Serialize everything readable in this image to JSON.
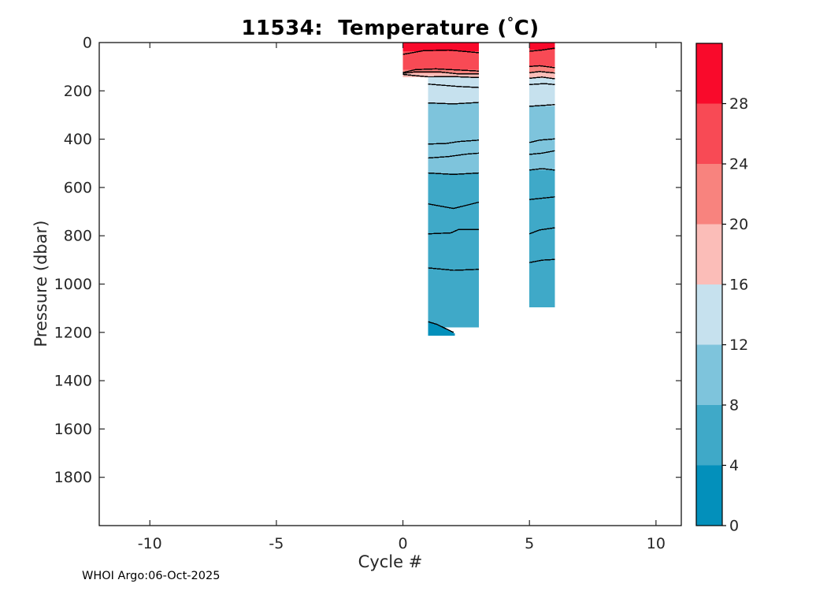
{
  "window": {
    "background": "#ffffff"
  },
  "footer": "WHOI Argo:06-Oct-2025",
  "chart_data": {
    "type": "filled-contour",
    "title": {
      "prefix": "11534:  Temperature (",
      "degree": "°",
      "suffix": "C)"
    },
    "xlabel": "Cycle #",
    "ylabel": "Pressure (dbar)",
    "units": {
      "x": "cycle number",
      "y": "dbar",
      "z": "degC"
    },
    "xlim": [
      -12,
      11
    ],
    "ylim": [
      0,
      2000
    ],
    "y_reversed": true,
    "xticks": [
      -10,
      -5,
      0,
      5,
      10
    ],
    "yticks": [
      0,
      200,
      400,
      600,
      800,
      1000,
      1200,
      1400,
      1600,
      1800
    ],
    "grid": false,
    "axis_color": "#262626",
    "frame_color": "#000000",
    "contour_line_color": "#000000",
    "colorbar": {
      "min": 0,
      "max": 32,
      "tick_values": [
        0,
        4,
        8,
        12,
        16,
        20,
        24,
        28
      ],
      "segments": [
        {
          "label": "0-4",
          "range": [
            0,
            4
          ],
          "color": "#0390BB"
        },
        {
          "label": "4-8",
          "range": [
            4,
            8
          ],
          "color": "#3FA9C8"
        },
        {
          "label": "8-12",
          "range": [
            8,
            12
          ],
          "color": "#7EC4DC"
        },
        {
          "label": "12-16",
          "range": [
            12,
            16
          ],
          "color": "#C6E1EE"
        },
        {
          "label": "16-20",
          "range": [
            16,
            20
          ],
          "color": "#FBBDB8"
        },
        {
          "label": "20-24",
          "range": [
            20,
            24
          ],
          "color": "#F8837E"
        },
        {
          "label": "24-28",
          "range": [
            24,
            28
          ],
          "color": "#F84A55"
        },
        {
          "label": "28+",
          "range": [
            28,
            32
          ],
          "color": "#F90A2B"
        }
      ]
    },
    "bands": [
      {
        "name": "cycles-0-3",
        "fills": [
          {
            "x": [
              0,
              3
            ],
            "p": [
              0,
              36
            ],
            "level": "28+"
          },
          {
            "x": [
              0,
              3
            ],
            "p": [
              36,
              113
            ],
            "level": "24-28"
          },
          {
            "x": [
              0,
              3
            ],
            "p": [
              113,
              127
            ],
            "level": "20-24"
          },
          {
            "x": [
              0,
              3
            ],
            "p": [
              127,
              143
            ],
            "level": "16-20"
          },
          {
            "x": [
              1,
              3
            ],
            "p": [
              143,
              251
            ],
            "level": "12-16"
          },
          {
            "x": [
              1,
              3
            ],
            "p": [
              251,
              541
            ],
            "level": "8-12"
          },
          {
            "x": [
              1,
              3
            ],
            "p": [
              541,
              1180
            ],
            "level": "4-8"
          },
          {
            "poly": [
              [
                1,
                1156
              ],
              [
                1.35,
                1167
              ],
              [
                1.7,
                1185
              ],
              [
                2.05,
                1205
              ],
              [
                2.05,
                1214
              ],
              [
                1,
                1214
              ]
            ],
            "level": "0-4"
          }
        ],
        "lines": [
          [
            [
              0,
              49
            ],
            [
              0.8,
              34
            ],
            [
              1.8,
              31
            ],
            [
              3,
              42
            ]
          ],
          [
            [
              0,
              124
            ],
            [
              0.5,
              112
            ],
            [
              1.3,
              109
            ],
            [
              3,
              118
            ]
          ],
          [
            [
              0,
              128
            ],
            [
              0.5,
              121
            ],
            [
              1.5,
              122
            ],
            [
              2.2,
              130
            ],
            [
              3,
              130
            ]
          ],
          [
            [
              0,
              132
            ],
            [
              1,
              142
            ],
            [
              2,
              141
            ],
            [
              3,
              145
            ]
          ],
          [
            [
              1,
              172
            ],
            [
              2.2,
              182
            ],
            [
              3,
              186
            ]
          ],
          [
            [
              1,
              250
            ],
            [
              2,
              254
            ],
            [
              3,
              248
            ]
          ],
          [
            [
              1,
              420
            ],
            [
              1.7,
              418
            ],
            [
              2.2,
              410
            ],
            [
              3,
              404
            ]
          ],
          [
            [
              1,
              478
            ],
            [
              1.8,
              472
            ],
            [
              2.5,
              462
            ],
            [
              3,
              458
            ]
          ],
          [
            [
              1,
              540
            ],
            [
              2,
              546
            ],
            [
              3,
              540
            ]
          ],
          [
            [
              1,
              668
            ],
            [
              2,
              687
            ],
            [
              3,
              661
            ]
          ],
          [
            [
              1,
              792
            ],
            [
              1.9,
              788
            ],
            [
              2.2,
              774
            ],
            [
              3,
              774
            ]
          ],
          [
            [
              1,
              933
            ],
            [
              2,
              943
            ],
            [
              3,
              939
            ]
          ],
          [
            [
              1,
              1156
            ],
            [
              1.35,
              1167
            ],
            [
              1.7,
              1185
            ],
            [
              2,
              1200
            ]
          ]
        ]
      },
      {
        "name": "cycles-5-6",
        "fills": [
          {
            "x": [
              5,
              6
            ],
            "p": [
              0,
              30
            ],
            "level": "28+"
          },
          {
            "x": [
              5,
              6
            ],
            "p": [
              30,
              100
            ],
            "level": "24-28"
          },
          {
            "x": [
              5,
              6
            ],
            "p": [
              100,
              123
            ],
            "level": "20-24"
          },
          {
            "x": [
              5,
              6
            ],
            "p": [
              123,
              147
            ],
            "level": "16-20"
          },
          {
            "x": [
              5,
              6
            ],
            "p": [
              147,
              262
            ],
            "level": "12-16"
          },
          {
            "x": [
              5,
              6
            ],
            "p": [
              262,
              528
            ],
            "level": "8-12"
          },
          {
            "x": [
              5,
              6
            ],
            "p": [
              528,
              1096
            ],
            "level": "4-8"
          }
        ],
        "lines": [
          [
            [
              5,
              36
            ],
            [
              5.5,
              31
            ],
            [
              6,
              23
            ]
          ],
          [
            [
              5,
              99
            ],
            [
              5.4,
              96
            ],
            [
              6,
              104
            ]
          ],
          [
            [
              5,
              125
            ],
            [
              5.4,
              120
            ],
            [
              6,
              126
            ]
          ],
          [
            [
              5,
              148
            ],
            [
              5.5,
              143
            ],
            [
              6,
              150
            ]
          ],
          [
            [
              5,
              174
            ],
            [
              5.6,
              170
            ],
            [
              6,
              174
            ]
          ],
          [
            [
              5,
              264
            ],
            [
              6,
              257
            ]
          ],
          [
            [
              5,
              414
            ],
            [
              5.4,
              404
            ],
            [
              6,
              399
            ]
          ],
          [
            [
              5,
              463
            ],
            [
              5.5,
              458
            ],
            [
              6,
              448
            ]
          ],
          [
            [
              5,
              528
            ],
            [
              5.5,
              522
            ],
            [
              6,
              528
            ]
          ],
          [
            [
              5,
              650
            ],
            [
              6,
              639
            ]
          ],
          [
            [
              5,
              792
            ],
            [
              5.4,
              776
            ],
            [
              6,
              767
            ]
          ],
          [
            [
              5,
              911
            ],
            [
              5.5,
              901
            ],
            [
              6,
              898
            ]
          ]
        ]
      }
    ]
  }
}
